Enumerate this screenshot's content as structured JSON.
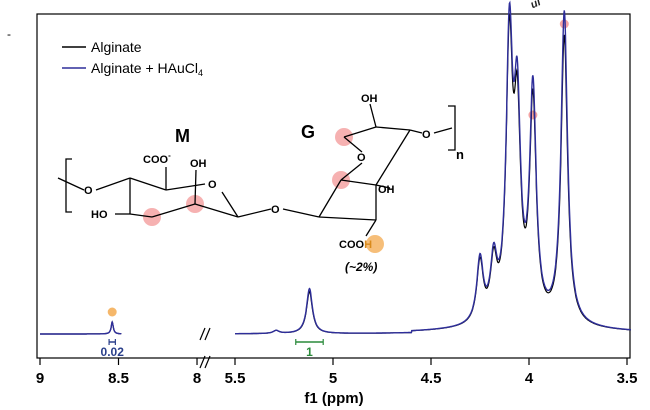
{
  "chart_data": {
    "type": "line",
    "xlabel": "f1 (ppm)",
    "x_axis": {
      "reversed": true,
      "broken": true,
      "ticks": [
        "9",
        "8.5",
        "8",
        "5.5",
        "5",
        "4.5",
        "4",
        "3.5"
      ]
    },
    "legend": {
      "placement": "top-left",
      "entries": [
        "Alginate",
        "Alginate + HAuCl4"
      ]
    },
    "series": [
      {
        "name": "Alginate",
        "color": "#000000",
        "peaks": [
          {
            "ppm": 8.54,
            "height": 0.04
          },
          {
            "ppm": 5.29,
            "height": 0.01
          },
          {
            "ppm": 5.12,
            "height": 0.14
          },
          {
            "ppm": 4.25,
            "height": 0.2
          },
          {
            "ppm": 4.18,
            "height": 0.18
          },
          {
            "ppm": 4.1,
            "height": 0.88
          },
          {
            "ppm": 4.06,
            "height": 0.62
          },
          {
            "ppm": 3.98,
            "height": 0.72
          },
          {
            "ppm": 3.82,
            "height": 0.96
          }
        ]
      },
      {
        "name": "Alginate + HAuCl4",
        "color": "#2e2e9a",
        "peaks": [
          {
            "ppm": 8.54,
            "height": 0.04
          },
          {
            "ppm": 5.29,
            "height": 0.01
          },
          {
            "ppm": 5.12,
            "height": 0.15
          },
          {
            "ppm": 4.25,
            "height": 0.21
          },
          {
            "ppm": 4.18,
            "height": 0.19
          },
          {
            "ppm": 4.1,
            "height": 0.91
          },
          {
            "ppm": 4.06,
            "height": 0.66
          },
          {
            "ppm": 3.98,
            "height": 0.76
          },
          {
            "ppm": 3.82,
            "height": 1.04
          }
        ]
      }
    ],
    "integrals": [
      {
        "label": "0.02",
        "color": "#2a3f8a",
        "range": [
          8.56,
          8.52
        ]
      },
      {
        "label": "1",
        "color": "#2a8a3a",
        "range": [
          5.19,
          5.05
        ]
      }
    ],
    "peak_markers": [
      {
        "ppm": 8.54,
        "color": "#f5b76a"
      },
      {
        "ppm": 3.98,
        "color": "#f4a3a3"
      },
      {
        "ppm": 3.82,
        "color": "#f4a3a3"
      }
    ]
  },
  "structure": {
    "unit_m": "M",
    "unit_g": "G",
    "coo_minus": "COO",
    "minus_sign": "-",
    "oh_top_m": "OH",
    "ho_left": "HO",
    "oh_top_g": "OH",
    "oh_right_g": "OH",
    "cooh_prefix": "COO",
    "cooh_h": "H",
    "percent": "(~2%)",
    "subscript_n": "n",
    "ring_o": "O",
    "highlight_pink": "#f4a3a3",
    "highlight_orange": "#f5b76a"
  },
  "corner_text": "ui"
}
